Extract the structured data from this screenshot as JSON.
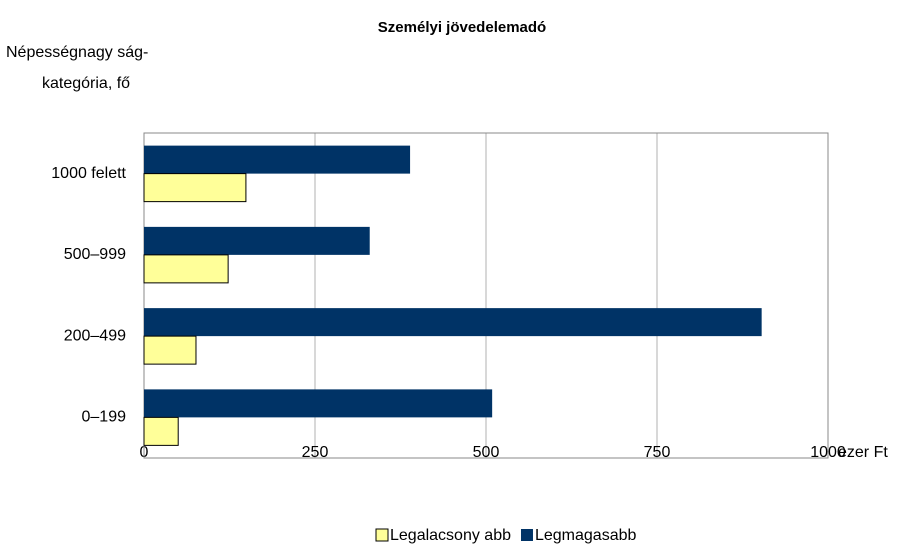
{
  "chart_data": {
    "type": "hbar",
    "title": "Személyi jövedelemadó",
    "ylabel": [
      "Népességnagy ság-",
      "kategória, fő"
    ],
    "xlabel": "ezer Ft",
    "categories": [
      "1000 felett",
      "500–999",
      "200–499",
      "0–199"
    ],
    "series": [
      {
        "name": "Legmagasabb",
        "color": "#003366",
        "values": [
          389,
          330,
          903,
          509
        ]
      },
      {
        "name": "Legalacsony abb",
        "color": "#ffff99",
        "values": [
          149,
          123,
          76,
          50
        ]
      }
    ],
    "xlim": [
      0,
      1000
    ],
    "xticks": [
      0,
      250,
      500,
      750,
      1000
    ],
    "grid": true,
    "legend": "bottom"
  }
}
